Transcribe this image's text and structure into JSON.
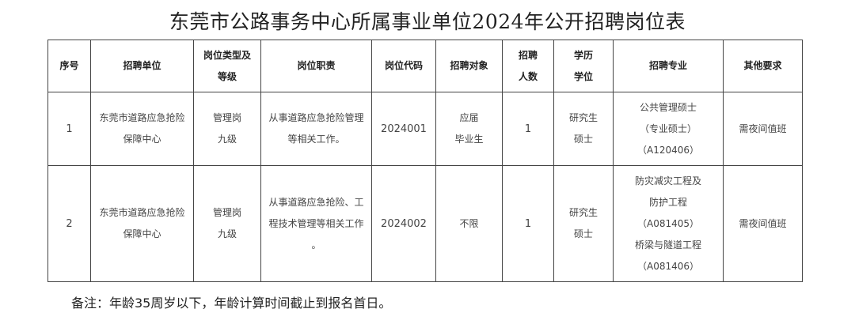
{
  "title": "东莞市公路事务中心所属事业单位2024年公开招聘岗位表",
  "table": {
    "headers": [
      "序号",
      "招聘单位",
      "岗位类型及\n等级",
      "岗位职责",
      "岗位代码",
      "招聘对象",
      "招聘\n人数",
      "学历\n学位",
      "招聘专业",
      "其他要求"
    ],
    "rows": [
      [
        "1",
        "东莞市道路应急抢险\n保障中心",
        "管理岗\n九级",
        "从事道路应急抢险管理\n等相关工作。",
        "2024001",
        "应届\n毕业生",
        "1",
        "研究生\n硕士",
        "公共管理硕士\n（专业硕士）\n（A120406）",
        "需夜间值班"
      ],
      [
        "2",
        "东莞市道路应急抢险\n保障中心",
        "管理岗\n九级",
        "从事道路应急抢险、工\n程技术管理等相关工作\n。",
        "2024002",
        "不限",
        "1",
        "研究生\n硕士",
        "防灾减灾工程及\n防护工程\n（A081405）\n桥梁与隧道工程\n（A081406）",
        "需夜间值班"
      ]
    ]
  },
  "note": "备注：年龄35周岁以下，年龄计算时间截止到报名首日。"
}
